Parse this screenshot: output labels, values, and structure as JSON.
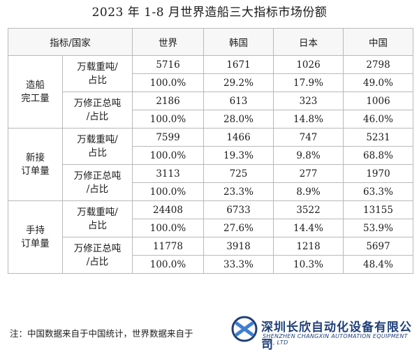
{
  "title": "2023 年 1-8 月世界造船三大指标市场份额",
  "header": {
    "corner": "指标/国家",
    "cols": [
      "世界",
      "韩国",
      "日本",
      "中国"
    ]
  },
  "groups": [
    {
      "label": [
        "造船",
        "完工量"
      ],
      "metrics": [
        {
          "label": [
            "万载重吨/",
            "占比"
          ],
          "values": [
            "5716",
            "1671",
            "1026",
            "2798"
          ],
          "shares": [
            "100.0%",
            "29.2%",
            "17.9%",
            "49.0%"
          ]
        },
        {
          "label": [
            "万修正总吨",
            "/占比"
          ],
          "values": [
            "2186",
            "613",
            "323",
            "1006"
          ],
          "shares": [
            "100.0%",
            "28.0%",
            "14.8%",
            "46.0%"
          ]
        }
      ]
    },
    {
      "label": [
        "新接",
        "订单量"
      ],
      "metrics": [
        {
          "label": [
            "万载重吨/",
            "占比"
          ],
          "values": [
            "7599",
            "1466",
            "747",
            "5231"
          ],
          "shares": [
            "100.0%",
            "19.3%",
            "9.8%",
            "68.8%"
          ]
        },
        {
          "label": [
            "万修正总吨",
            "/占比"
          ],
          "values": [
            "3113",
            "725",
            "277",
            "1970"
          ],
          "shares": [
            "100.0%",
            "23.3%",
            "8.9%",
            "63.3%"
          ]
        }
      ]
    },
    {
      "label": [
        "手持",
        "订单量"
      ],
      "metrics": [
        {
          "label": [
            "万载重吨/",
            "占比"
          ],
          "values": [
            "24408",
            "6733",
            "3522",
            "13155"
          ],
          "shares": [
            "100.0%",
            "27.6%",
            "14.4%",
            "53.9%"
          ]
        },
        {
          "label": [
            "万修正总吨",
            "/占比"
          ],
          "values": [
            "11778",
            "3918",
            "1218",
            "5697"
          ],
          "shares": [
            "100.0%",
            "33.3%",
            "10.3%",
            "48.4%"
          ]
        }
      ]
    }
  ],
  "note": "注：中国数据来自于中国统计，世界数据来自于",
  "logo": {
    "name_cn": "深圳长欣自动化设备有限公司",
    "name_en": "SHENZHEN CHANGXIN AUTOMATION EQUIPMENT CO., LTD",
    "color": "#1f3f78"
  }
}
